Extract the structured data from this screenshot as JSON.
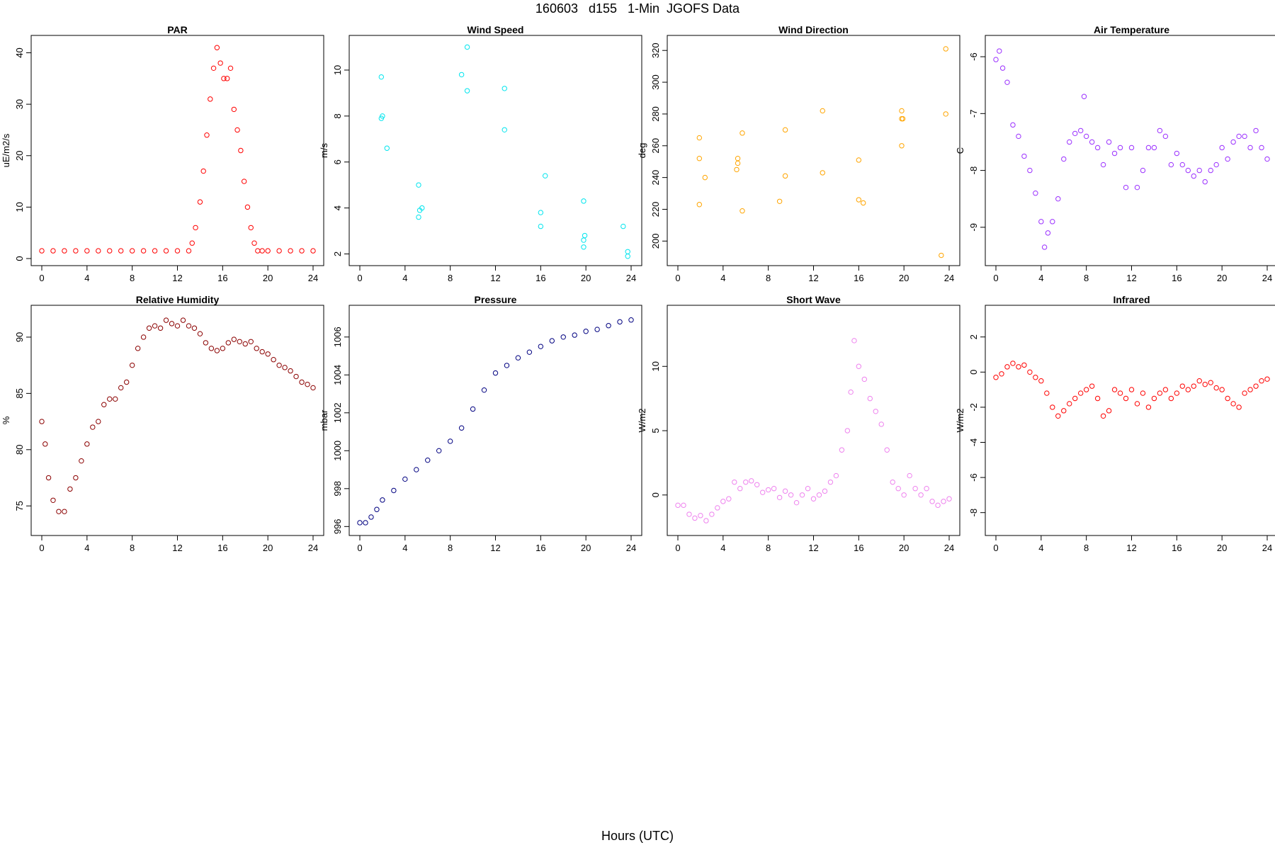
{
  "figure": {
    "title": "160603   d155   1-Min  JGOFS Data",
    "xlabel": "Hours (UTC)"
  },
  "chart_data": [
    {
      "type": "scatter",
      "title": "PAR",
      "ylabel": "uE/m2/s",
      "color": "#ff0000",
      "xlim": [
        0,
        24
      ],
      "ylim": [
        0,
        42
      ],
      "xticks": [
        0,
        4,
        8,
        12,
        16,
        20,
        24
      ],
      "yticks": [
        0,
        10,
        20,
        30,
        40
      ],
      "x": [
        0,
        1,
        2,
        3,
        4,
        5,
        6,
        7,
        8,
        9,
        10,
        11,
        12,
        13,
        13.3,
        13.6,
        14.0,
        14.3,
        14.6,
        14.9,
        15.2,
        15.5,
        15.8,
        16.1,
        16.4,
        16.7,
        17.0,
        17.3,
        17.6,
        17.9,
        18.2,
        18.5,
        18.8,
        19.1,
        19.5,
        20,
        21,
        22,
        23,
        24
      ],
      "y": [
        1.5,
        1.5,
        1.5,
        1.5,
        1.5,
        1.5,
        1.5,
        1.5,
        1.5,
        1.5,
        1.5,
        1.5,
        1.5,
        1.5,
        3,
        6,
        11,
        17,
        24,
        31,
        37,
        41,
        38,
        35,
        35,
        37,
        29,
        25,
        21,
        15,
        10,
        6,
        3,
        1.5,
        1.5,
        1.5,
        1.5,
        1.5,
        1.5,
        1.5
      ]
    },
    {
      "type": "scatter",
      "title": "Wind Speed",
      "ylabel": "m/s",
      "color": "#00e5ee",
      "xlim": [
        0,
        24
      ],
      "ylim": [
        1.8,
        11.2
      ],
      "xticks": [
        0,
        4,
        8,
        12,
        16,
        20,
        24
      ],
      "yticks": [
        2,
        4,
        6,
        8,
        10
      ],
      "x": [
        1.9,
        1.9,
        2.0,
        2.4,
        5.2,
        5.3,
        5.5,
        5.2,
        9.0,
        9.5,
        9.5,
        12.8,
        12.8,
        16.0,
        16.4,
        16.0,
        19.8,
        19.9,
        19.8,
        19.8,
        23.3,
        23.7,
        23.7
      ],
      "y": [
        9.7,
        7.9,
        8.0,
        6.6,
        5.0,
        3.9,
        4.0,
        3.6,
        9.8,
        11.0,
        9.1,
        9.2,
        7.4,
        3.8,
        5.4,
        3.2,
        4.3,
        2.8,
        2.6,
        2.3,
        3.2,
        2.1,
        1.9
      ]
    },
    {
      "type": "scatter",
      "title": "Wind Direction",
      "ylabel": "deg",
      "color": "#ffa500",
      "xlim": [
        0,
        24
      ],
      "ylim": [
        189,
        325
      ],
      "xticks": [
        0,
        4,
        8,
        12,
        16,
        20,
        24
      ],
      "yticks": [
        200,
        220,
        240,
        260,
        280,
        300,
        320
      ],
      "x": [
        1.9,
        1.9,
        1.9,
        2.4,
        5.2,
        5.3,
        5.3,
        5.7,
        5.7,
        9.0,
        9.5,
        9.5,
        12.8,
        12.8,
        16.0,
        16.0,
        16.4,
        19.8,
        19.8,
        19.9,
        19.8,
        23.3,
        23.7,
        23.7
      ],
      "y": [
        265,
        252,
        223,
        240,
        245,
        252,
        249,
        268,
        219,
        225,
        270,
        241,
        282,
        243,
        251,
        226,
        224,
        282,
        277,
        277,
        260,
        191,
        321,
        280
      ]
    },
    {
      "type": "scatter",
      "title": "Air Temperature",
      "ylabel": "C",
      "color": "#9b30ff",
      "xlim": [
        0,
        24
      ],
      "ylim": [
        -9.55,
        -5.75
      ],
      "xticks": [
        0,
        4,
        8,
        12,
        16,
        20,
        24
      ],
      "yticks": [
        -9,
        -8,
        -7,
        -6
      ],
      "x": [
        0,
        0.3,
        0.6,
        1.0,
        1.5,
        2.0,
        2.5,
        3.0,
        3.5,
        4.0,
        4.3,
        4.6,
        5.0,
        5.5,
        6.0,
        6.5,
        7.0,
        7.5,
        7.8,
        8.0,
        8.5,
        9.0,
        9.5,
        10.0,
        10.5,
        11.0,
        11.5,
        12.0,
        12.5,
        13.0,
        13.5,
        14.0,
        14.5,
        15.0,
        15.5,
        16.0,
        16.5,
        17.0,
        17.5,
        18.0,
        18.5,
        19.0,
        19.5,
        20.0,
        20.5,
        21.0,
        21.5,
        22.0,
        22.5,
        23.0,
        23.5,
        24.0
      ],
      "y": [
        -6.05,
        -5.9,
        -6.2,
        -6.45,
        -7.2,
        -7.4,
        -7.75,
        -8.0,
        -8.4,
        -8.9,
        -9.35,
        -9.1,
        -8.9,
        -8.5,
        -7.8,
        -7.5,
        -7.35,
        -7.3,
        -6.7,
        -7.4,
        -7.5,
        -7.6,
        -7.9,
        -7.5,
        -7.7,
        -7.6,
        -8.3,
        -7.6,
        -8.3,
        -8.0,
        -7.6,
        -7.6,
        -7.3,
        -7.4,
        -7.9,
        -7.7,
        -7.9,
        -8.0,
        -8.1,
        -8.0,
        -8.2,
        -8.0,
        -7.9,
        -7.6,
        -7.8,
        -7.5,
        -7.4,
        -7.4,
        -7.6,
        -7.3,
        -7.6,
        -7.8
      ]
    },
    {
      "type": "scatter",
      "title": "Relative Humidity",
      "ylabel": "%",
      "color": "#8b0000",
      "xlim": [
        0,
        24
      ],
      "ylim": [
        73,
        92.2
      ],
      "xticks": [
        0,
        4,
        8,
        12,
        16,
        20,
        24
      ],
      "yticks": [
        75,
        80,
        85,
        90
      ],
      "x": [
        0,
        0.3,
        0.6,
        1.0,
        1.5,
        2.0,
        2.5,
        3.0,
        3.5,
        4.0,
        4.5,
        5.0,
        5.5,
        6.0,
        6.5,
        7.0,
        7.5,
        8.0,
        8.5,
        9.0,
        9.5,
        10.0,
        10.5,
        11.0,
        11.5,
        12.0,
        12.5,
        13.0,
        13.5,
        14.0,
        14.5,
        15.0,
        15.5,
        16.0,
        16.5,
        17.0,
        17.5,
        18.0,
        18.5,
        19.0,
        19.5,
        20.0,
        20.5,
        21.0,
        21.5,
        22.0,
        22.5,
        23.0,
        23.5,
        24.0
      ],
      "y": [
        82.5,
        80.5,
        77.5,
        75.5,
        74.5,
        74.5,
        76.5,
        77.5,
        79.0,
        80.5,
        82.0,
        82.5,
        84.0,
        84.5,
        84.5,
        85.5,
        86.0,
        87.5,
        89.0,
        90.0,
        90.8,
        91.0,
        90.8,
        91.5,
        91.2,
        91.0,
        91.5,
        91.0,
        90.8,
        90.3,
        89.5,
        89.0,
        88.8,
        89.0,
        89.5,
        89.8,
        89.6,
        89.4,
        89.6,
        89.0,
        88.7,
        88.5,
        88.0,
        87.5,
        87.3,
        87.0,
        86.5,
        86.0,
        85.8,
        85.5
      ]
    },
    {
      "type": "scatter",
      "title": "Pressure",
      "ylabel": "mbar",
      "color": "#000080",
      "xlim": [
        0,
        24
      ],
      "ylim": [
        995.9,
        1007.3
      ],
      "xticks": [
        0,
        4,
        8,
        12,
        16,
        20,
        24
      ],
      "yticks": [
        996,
        998,
        1000,
        1002,
        1004,
        1006
      ],
      "x": [
        0,
        0.5,
        1.0,
        1.5,
        2.0,
        3.0,
        4.0,
        5.0,
        6.0,
        7.0,
        8.0,
        9.0,
        10.0,
        11.0,
        12.0,
        13.0,
        14.0,
        15.0,
        16.0,
        17.0,
        18.0,
        19.0,
        20.0,
        21.0,
        22.0,
        23.0,
        24.0
      ],
      "y": [
        996.2,
        996.2,
        996.5,
        996.9,
        997.4,
        997.9,
        998.5,
        999.0,
        999.5,
        1000.0,
        1000.5,
        1001.2,
        1002.2,
        1003.2,
        1004.1,
        1004.5,
        1004.9,
        1005.2,
        1005.5,
        1005.8,
        1006.0,
        1006.1,
        1006.3,
        1006.4,
        1006.6,
        1006.8,
        1006.9
      ]
    },
    {
      "type": "scatter",
      "title": "Short Wave",
      "ylabel": "W/m2",
      "color": "#ee82ee",
      "xlim": [
        0,
        24
      ],
      "ylim": [
        -2.6,
        14.2
      ],
      "xticks": [
        0,
        4,
        8,
        12,
        16,
        20,
        24
      ],
      "yticks": [
        0,
        5,
        10
      ],
      "x": [
        0,
        0.5,
        1.0,
        1.5,
        2.0,
        2.5,
        3.0,
        3.5,
        4.0,
        4.5,
        5.0,
        5.5,
        6.0,
        6.5,
        7.0,
        7.5,
        8.0,
        8.5,
        9.0,
        9.5,
        10.0,
        10.5,
        11.0,
        11.5,
        12.0,
        12.5,
        13.0,
        13.5,
        14.0,
        14.5,
        15.0,
        15.3,
        15.6,
        16.0,
        16.5,
        17.0,
        17.5,
        18.0,
        18.5,
        19.0,
        19.5,
        20.0,
        20.5,
        21.0,
        21.5,
        22.0,
        22.5,
        23.0,
        23.5,
        24.0
      ],
      "y": [
        -0.8,
        -0.8,
        -1.5,
        -1.8,
        -1.6,
        -2.0,
        -1.5,
        -1.0,
        -0.5,
        -0.3,
        1.0,
        0.5,
        1.0,
        1.1,
        0.8,
        0.2,
        0.4,
        0.5,
        -0.2,
        0.3,
        0.0,
        -0.6,
        0.0,
        0.5,
        -0.3,
        0.0,
        0.3,
        1.0,
        1.5,
        3.5,
        5.0,
        8.0,
        12.0,
        10.0,
        9.0,
        7.5,
        6.5,
        5.5,
        3.5,
        1.0,
        0.5,
        0.0,
        1.5,
        0.5,
        0.0,
        0.5,
        -0.5,
        -0.8,
        -0.5,
        -0.3
      ]
    },
    {
      "type": "scatter",
      "title": "Infrared",
      "ylabel": "W/m2",
      "color": "#ff0000",
      "xlim": [
        0,
        24
      ],
      "ylim": [
        -8.9,
        3.4
      ],
      "xticks": [
        0,
        4,
        8,
        12,
        16,
        20,
        24
      ],
      "yticks": [
        -8,
        -6,
        -4,
        -2,
        0,
        2
      ],
      "x": [
        0,
        0.5,
        1.0,
        1.5,
        2.0,
        2.5,
        3.0,
        3.5,
        4.0,
        4.5,
        5.0,
        5.5,
        6.0,
        6.5,
        7.0,
        7.5,
        8.0,
        8.5,
        9.0,
        9.5,
        10.0,
        10.5,
        11.0,
        11.5,
        12.0,
        12.5,
        13.0,
        13.5,
        14.0,
        14.5,
        15.0,
        15.5,
        16.0,
        16.5,
        17.0,
        17.5,
        18.0,
        18.5,
        19.0,
        19.5,
        20.0,
        20.5,
        21.0,
        21.5,
        22.0,
        22.5,
        23.0,
        23.5,
        24.0
      ],
      "y": [
        -0.3,
        -0.1,
        0.3,
        0.5,
        0.3,
        0.4,
        0.0,
        -0.3,
        -0.5,
        -1.2,
        -2.0,
        -2.5,
        -2.2,
        -1.8,
        -1.5,
        -1.2,
        -1.0,
        -0.8,
        -1.5,
        -2.5,
        -2.2,
        -1.0,
        -1.2,
        -1.5,
        -1.0,
        -1.8,
        -1.2,
        -2.0,
        -1.5,
        -1.2,
        -1.0,
        -1.5,
        -1.2,
        -0.8,
        -1.0,
        -0.8,
        -0.5,
        -0.7,
        -0.6,
        -0.9,
        -1.0,
        -1.5,
        -1.8,
        -2.0,
        -1.2,
        -1.0,
        -0.8,
        -0.5,
        -0.4
      ]
    }
  ]
}
